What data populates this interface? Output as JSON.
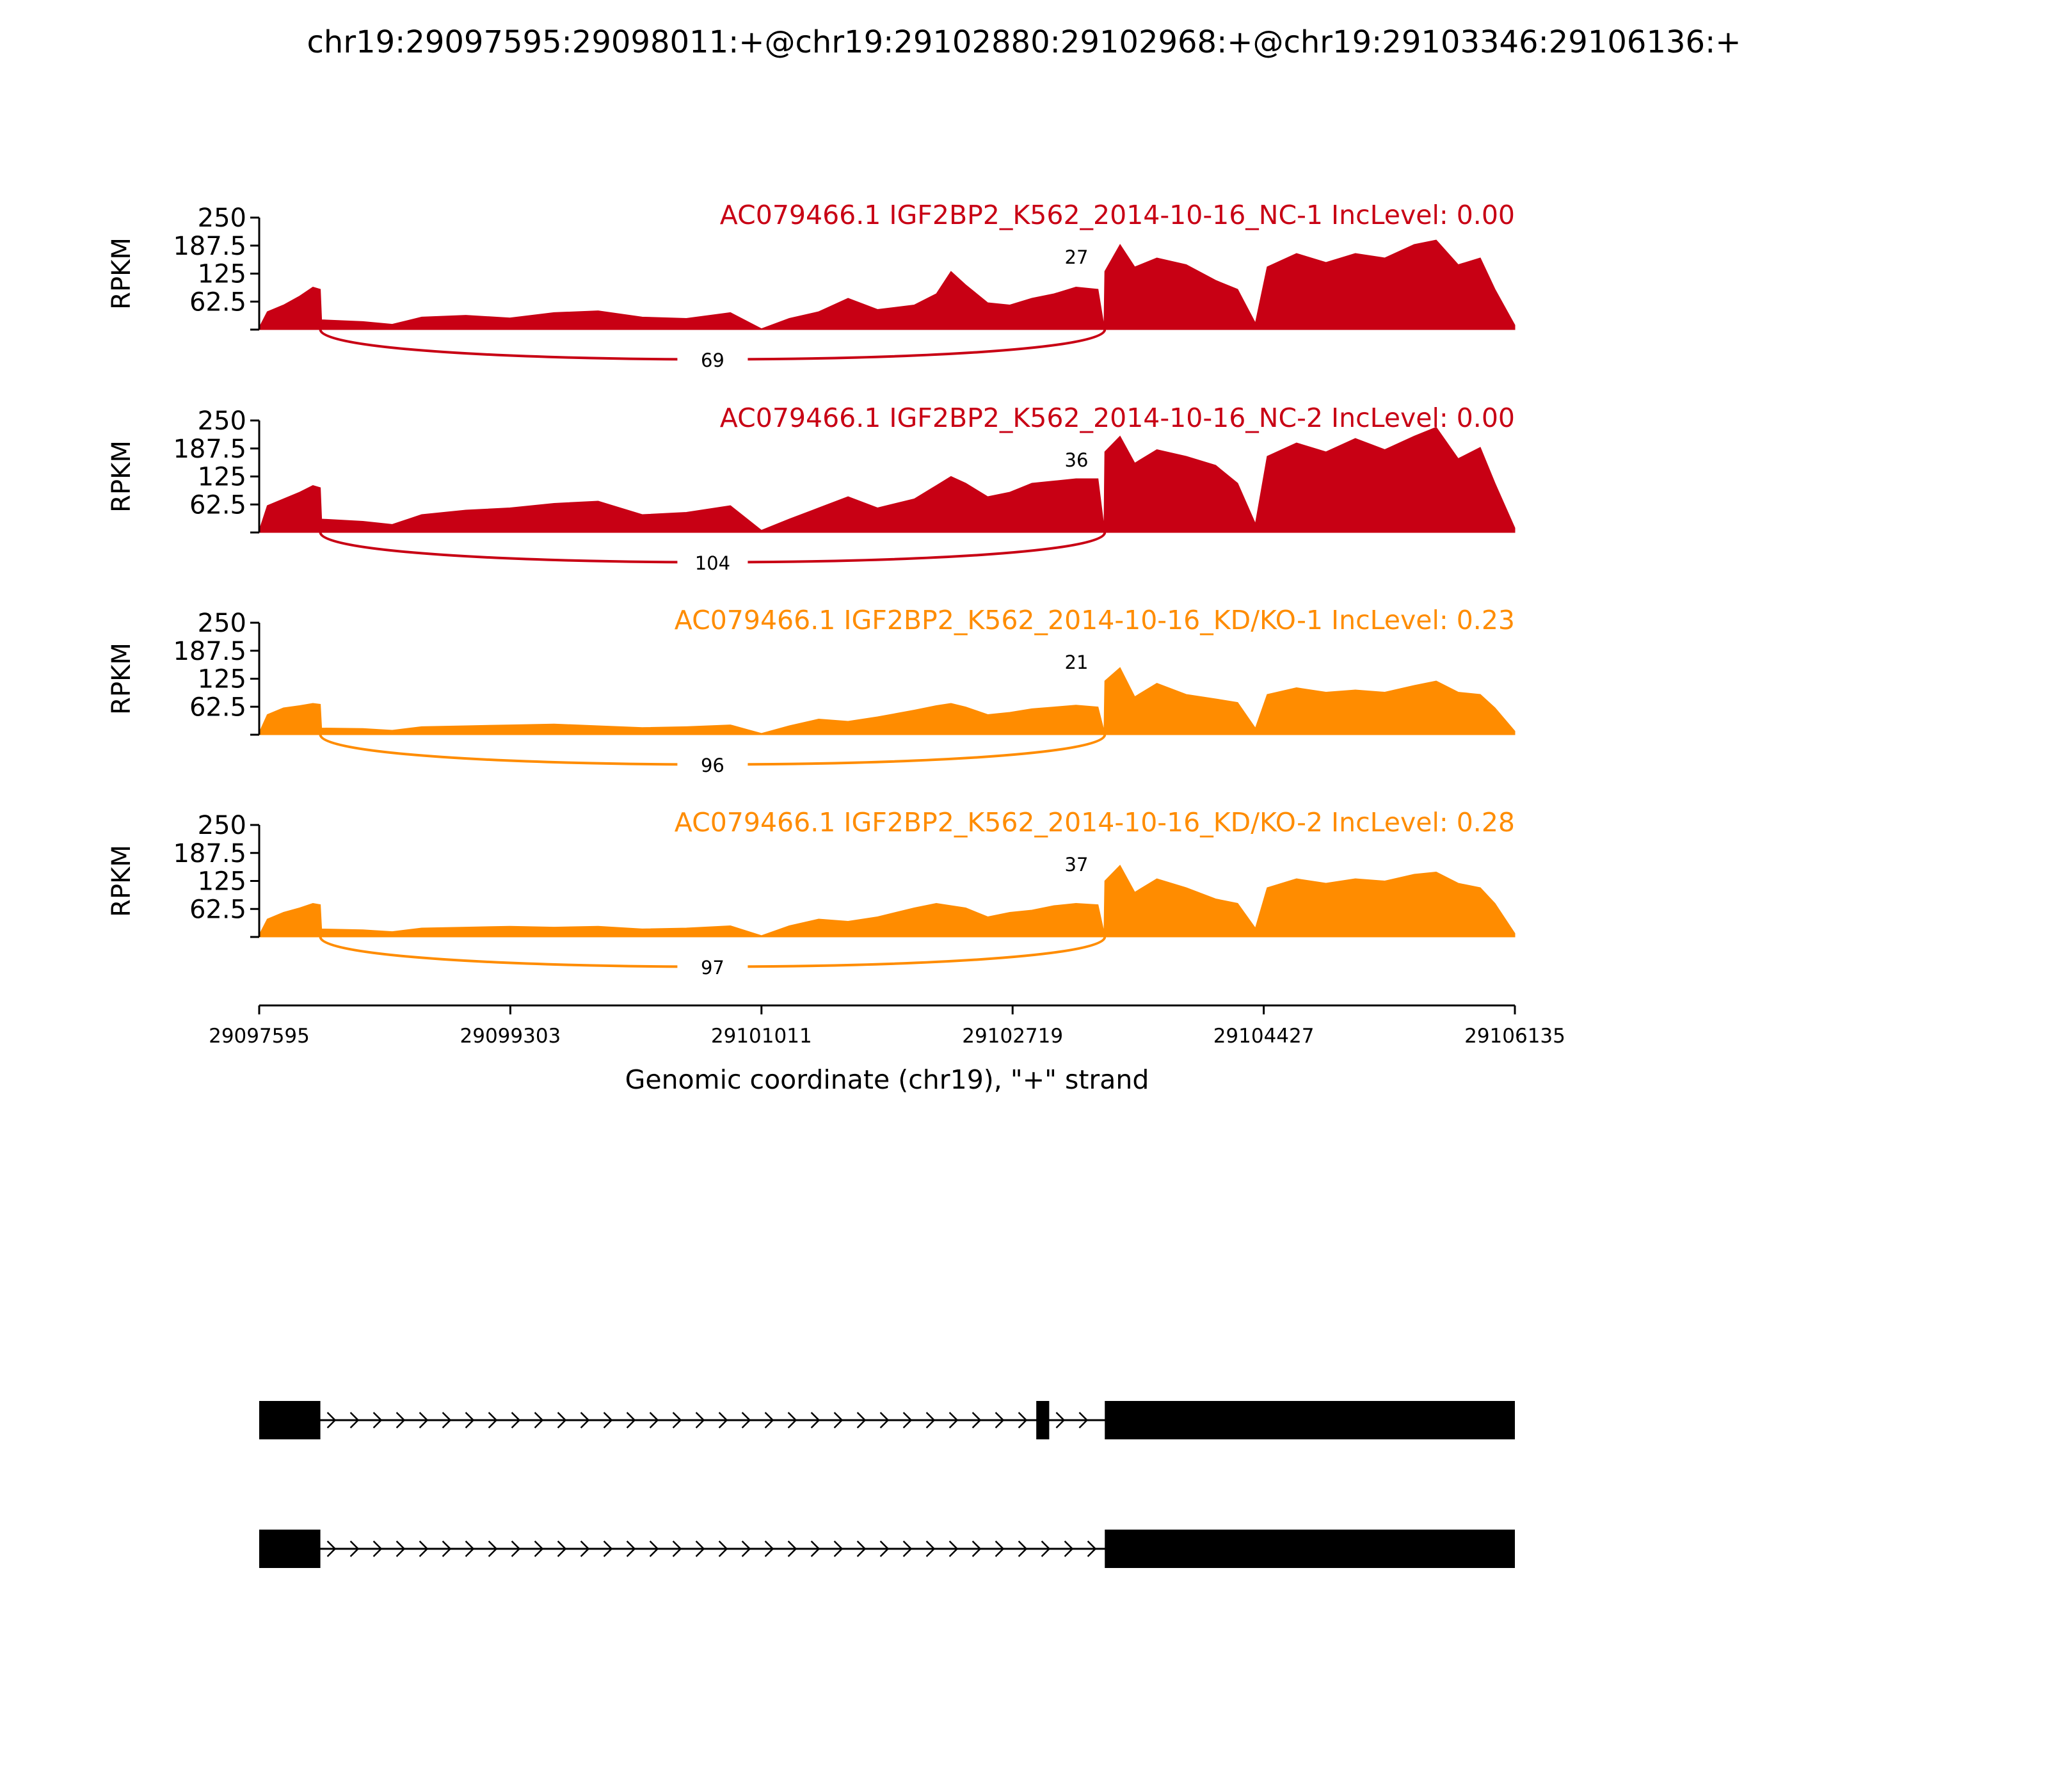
{
  "title": "chr19:29097595:29098011:+@chr19:29102880:29102968:+@chr19:29103346:29106136:+",
  "colors": {
    "nc": "#c80014",
    "kd": "#ff8c00",
    "axis": "#000000"
  },
  "chart_data": {
    "type": "area",
    "ylabel": "RPKM",
    "ylim": [
      0,
      250
    ],
    "yticks": [
      "250",
      "187.5",
      "125",
      "62.5"
    ],
    "xlim": [
      29097595,
      29106135
    ],
    "xticks": [
      "29097595",
      "29099303",
      "29101011",
      "29102719",
      "29104427",
      "29106135"
    ],
    "xlabel": "Genomic coordinate (chr19), \"+\" strand",
    "exons": {
      "upstream": [
        29097595,
        29098011
      ],
      "skipped": [
        29102880,
        29102968
      ],
      "downstream": [
        29103346,
        29106136
      ]
    },
    "tracks": [
      {
        "label": "AC079466.1 IGF2BP2_K562_2014-10-16_NC-1 IncLevel: 0.00",
        "color_key": "nc",
        "inclusion_junction_count": "27",
        "skipping_junction_count": "69",
        "coverage": [
          [
            29097595,
            5
          ],
          [
            29097650,
            40
          ],
          [
            29097760,
            55
          ],
          [
            29097870,
            75
          ],
          [
            29097960,
            95
          ],
          [
            29098011,
            90
          ],
          [
            29098020,
            22
          ],
          [
            29098300,
            18
          ],
          [
            29098500,
            12
          ],
          [
            29098700,
            28
          ],
          [
            29099000,
            32
          ],
          [
            29099300,
            26
          ],
          [
            29099600,
            38
          ],
          [
            29099900,
            42
          ],
          [
            29100200,
            28
          ],
          [
            29100500,
            25
          ],
          [
            29100800,
            38
          ],
          [
            29101011,
            2
          ],
          [
            29101200,
            25
          ],
          [
            29101400,
            40
          ],
          [
            29101600,
            70
          ],
          [
            29101800,
            45
          ],
          [
            29102050,
            55
          ],
          [
            29102200,
            80
          ],
          [
            29102300,
            130
          ],
          [
            29102400,
            100
          ],
          [
            29102550,
            60
          ],
          [
            29102700,
            55
          ],
          [
            29102850,
            70
          ],
          [
            29103000,
            80
          ],
          [
            29103150,
            95
          ],
          [
            29103300,
            90
          ],
          [
            29103340,
            10
          ],
          [
            29103346,
            130
          ],
          [
            29103450,
            190
          ],
          [
            29103550,
            140
          ],
          [
            29103700,
            160
          ],
          [
            29103900,
            145
          ],
          [
            29104100,
            110
          ],
          [
            29104250,
            90
          ],
          [
            29104370,
            15
          ],
          [
            29104450,
            140
          ],
          [
            29104650,
            170
          ],
          [
            29104850,
            150
          ],
          [
            29105050,
            170
          ],
          [
            29105250,
            160
          ],
          [
            29105450,
            190
          ],
          [
            29105600,
            200
          ],
          [
            29105750,
            145
          ],
          [
            29105900,
            160
          ],
          [
            29106000,
            90
          ],
          [
            29106135,
            10
          ]
        ]
      },
      {
        "label": "AC079466.1 IGF2BP2_K562_2014-10-16_NC-2 IncLevel: 0.00",
        "color_key": "nc",
        "inclusion_junction_count": "36",
        "skipping_junction_count": "104",
        "coverage": [
          [
            29097595,
            5
          ],
          [
            29097650,
            60
          ],
          [
            29097760,
            75
          ],
          [
            29097870,
            90
          ],
          [
            29097960,
            105
          ],
          [
            29098011,
            100
          ],
          [
            29098020,
            30
          ],
          [
            29098300,
            25
          ],
          [
            29098500,
            18
          ],
          [
            29098700,
            40
          ],
          [
            29099000,
            50
          ],
          [
            29099300,
            55
          ],
          [
            29099600,
            65
          ],
          [
            29099900,
            70
          ],
          [
            29100200,
            40
          ],
          [
            29100500,
            45
          ],
          [
            29100800,
            60
          ],
          [
            29101011,
            5
          ],
          [
            29101200,
            30
          ],
          [
            29101400,
            55
          ],
          [
            29101600,
            80
          ],
          [
            29101800,
            55
          ],
          [
            29102050,
            75
          ],
          [
            29102200,
            105
          ],
          [
            29102300,
            125
          ],
          [
            29102400,
            110
          ],
          [
            29102550,
            80
          ],
          [
            29102700,
            90
          ],
          [
            29102850,
            110
          ],
          [
            29103000,
            115
          ],
          [
            29103150,
            120
          ],
          [
            29103300,
            120
          ],
          [
            29103340,
            15
          ],
          [
            29103346,
            180
          ],
          [
            29103450,
            215
          ],
          [
            29103550,
            155
          ],
          [
            29103700,
            185
          ],
          [
            29103900,
            170
          ],
          [
            29104100,
            150
          ],
          [
            29104250,
            110
          ],
          [
            29104370,
            20
          ],
          [
            29104450,
            170
          ],
          [
            29104650,
            200
          ],
          [
            29104850,
            180
          ],
          [
            29105050,
            210
          ],
          [
            29105250,
            185
          ],
          [
            29105450,
            215
          ],
          [
            29105600,
            235
          ],
          [
            29105750,
            165
          ],
          [
            29105900,
            190
          ],
          [
            29106000,
            110
          ],
          [
            29106135,
            10
          ]
        ]
      },
      {
        "label": "AC079466.1 IGF2BP2_K562_2014-10-16_KD/KO-1 IncLevel: 0.23",
        "color_key": "kd",
        "inclusion_junction_count": "21",
        "skipping_junction_count": "96",
        "coverage": [
          [
            29097595,
            5
          ],
          [
            29097650,
            45
          ],
          [
            29097760,
            60
          ],
          [
            29097870,
            65
          ],
          [
            29097960,
            70
          ],
          [
            29098011,
            68
          ],
          [
            29098020,
            15
          ],
          [
            29098300,
            14
          ],
          [
            29098500,
            10
          ],
          [
            29098700,
            18
          ],
          [
            29099000,
            20
          ],
          [
            29099300,
            22
          ],
          [
            29099600,
            24
          ],
          [
            29099900,
            20
          ],
          [
            29100200,
            16
          ],
          [
            29100500,
            18
          ],
          [
            29100800,
            22
          ],
          [
            29101011,
            3
          ],
          [
            29101200,
            20
          ],
          [
            29101400,
            35
          ],
          [
            29101600,
            30
          ],
          [
            29101800,
            40
          ],
          [
            29102050,
            55
          ],
          [
            29102200,
            65
          ],
          [
            29102300,
            70
          ],
          [
            29102400,
            62
          ],
          [
            29102550,
            45
          ],
          [
            29102700,
            50
          ],
          [
            29102850,
            58
          ],
          [
            29103000,
            62
          ],
          [
            29103150,
            66
          ],
          [
            29103300,
            62
          ],
          [
            29103340,
            10
          ],
          [
            29103346,
            120
          ],
          [
            29103450,
            150
          ],
          [
            29103550,
            85
          ],
          [
            29103700,
            115
          ],
          [
            29103900,
            90
          ],
          [
            29104100,
            80
          ],
          [
            29104250,
            72
          ],
          [
            29104370,
            15
          ],
          [
            29104450,
            90
          ],
          [
            29104650,
            105
          ],
          [
            29104850,
            95
          ],
          [
            29105050,
            100
          ],
          [
            29105250,
            95
          ],
          [
            29105450,
            110
          ],
          [
            29105600,
            120
          ],
          [
            29105750,
            95
          ],
          [
            29105900,
            90
          ],
          [
            29106000,
            60
          ],
          [
            29106135,
            8
          ]
        ]
      },
      {
        "label": "AC079466.1 IGF2BP2_K562_2014-10-16_KD/KO-2 IncLevel: 0.28",
        "color_key": "kd",
        "inclusion_junction_count": "37",
        "skipping_junction_count": "97",
        "coverage": [
          [
            29097595,
            5
          ],
          [
            29097650,
            40
          ],
          [
            29097760,
            55
          ],
          [
            29097870,
            65
          ],
          [
            29097960,
            75
          ],
          [
            29098011,
            72
          ],
          [
            29098020,
            18
          ],
          [
            29098300,
            16
          ],
          [
            29098500,
            12
          ],
          [
            29098700,
            20
          ],
          [
            29099000,
            22
          ],
          [
            29099300,
            24
          ],
          [
            29099600,
            22
          ],
          [
            29099900,
            24
          ],
          [
            29100200,
            18
          ],
          [
            29100500,
            20
          ],
          [
            29100800,
            25
          ],
          [
            29101011,
            3
          ],
          [
            29101200,
            25
          ],
          [
            29101400,
            40
          ],
          [
            29101600,
            35
          ],
          [
            29101800,
            45
          ],
          [
            29102050,
            65
          ],
          [
            29102200,
            75
          ],
          [
            29102300,
            70
          ],
          [
            29102400,
            65
          ],
          [
            29102550,
            45
          ],
          [
            29102700,
            55
          ],
          [
            29102850,
            60
          ],
          [
            29103000,
            70
          ],
          [
            29103150,
            75
          ],
          [
            29103300,
            72
          ],
          [
            29103340,
            12
          ],
          [
            29103346,
            125
          ],
          [
            29103450,
            160
          ],
          [
            29103550,
            100
          ],
          [
            29103700,
            130
          ],
          [
            29103900,
            110
          ],
          [
            29104100,
            85
          ],
          [
            29104250,
            75
          ],
          [
            29104370,
            20
          ],
          [
            29104450,
            110
          ],
          [
            29104650,
            130
          ],
          [
            29104850,
            120
          ],
          [
            29105050,
            130
          ],
          [
            29105250,
            125
          ],
          [
            29105450,
            140
          ],
          [
            29105600,
            145
          ],
          [
            29105750,
            120
          ],
          [
            29105900,
            110
          ],
          [
            29106000,
            75
          ],
          [
            29106135,
            8
          ]
        ]
      }
    ],
    "isoforms": [
      {
        "exons": [
          [
            29097595,
            29098011
          ],
          [
            29102880,
            29102968
          ],
          [
            29103346,
            29106136
          ]
        ]
      },
      {
        "exons": [
          [
            29097595,
            29098011
          ],
          [
            29103346,
            29106136
          ]
        ]
      }
    ]
  }
}
